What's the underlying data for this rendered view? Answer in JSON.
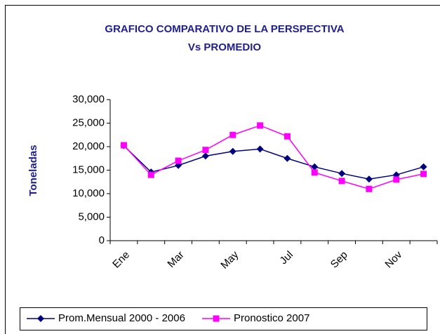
{
  "chart_data": {
    "type": "line",
    "title": [
      "GRAFICO COMPARATIVO  DE LA PERSPECTIVA",
      "Vs PROMEDIO"
    ],
    "y_label": "Toneladas",
    "categories": [
      "Ene",
      null,
      "Mar",
      null,
      "May",
      null,
      "Jul",
      null,
      "Sep",
      null,
      "Nov",
      null
    ],
    "series": [
      {
        "name": "Prom.Mensual 2000 - 2006",
        "color": "#000080",
        "marker": "diamond",
        "values": [
          20200,
          14600,
          16000,
          18000,
          19000,
          19500,
          17500,
          15700,
          14300,
          13100,
          14000,
          15700
        ]
      },
      {
        "name": "Pronostico 2007",
        "color": "#ff00ff",
        "marker": "square",
        "values": [
          20300,
          14000,
          17000,
          19300,
          22500,
          24500,
          22200,
          14500,
          12700,
          11000,
          13000,
          14200
        ]
      }
    ],
    "ylim": [
      0,
      30000
    ],
    "yticks": [
      0,
      {
        "value": 5000,
        "label": "5,000"
      },
      {
        "value": 10000,
        "label": "10,000"
      },
      {
        "value": 15000,
        "label": "15,000"
      },
      {
        "value": 20000,
        "label": "20,000"
      },
      {
        "value": 25000,
        "label": "25,000"
      },
      {
        "value": 30000,
        "label": "30,000"
      }
    ],
    "grid": false,
    "legend": "bottom"
  }
}
